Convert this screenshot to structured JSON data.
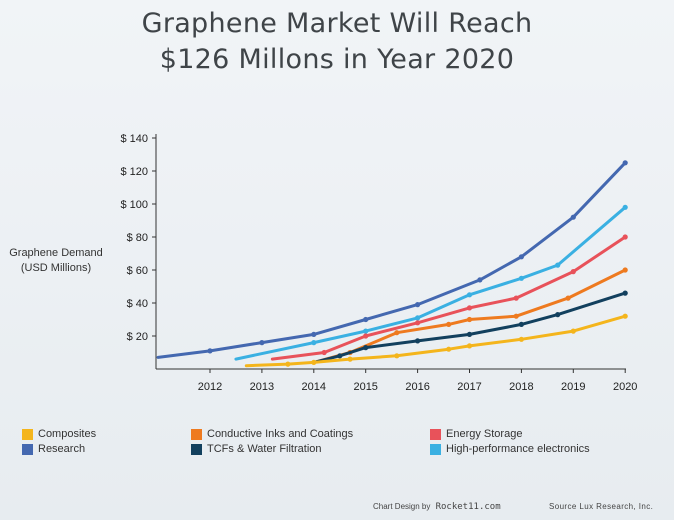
{
  "title_lines": [
    "Graphene Market Will Reach",
    "$126 Millons in Year 2020"
  ],
  "chart_data": {
    "type": "line",
    "title": "Graphene Market Will Reach $126 Millons in Year 2020",
    "ylabel_lines": [
      "Graphene Demand",
      "(USD Millions)"
    ],
    "xlabel": "",
    "x_ticks": [
      "2012",
      "2013",
      "2014",
      "2015",
      "2016",
      "2017",
      "2018",
      "2019",
      "2020"
    ],
    "y_ticks": [
      "$ 20",
      "$ 40",
      "$ 60",
      "$ 80",
      "$ 100",
      "$ 120",
      "$ 140"
    ],
    "ylim": [
      0,
      140
    ],
    "xlim": [
      2011.0,
      2020.0
    ],
    "grid": false,
    "legend_placement": "bottom",
    "series": [
      {
        "name": "Research",
        "color": "#4468b0",
        "x": [
          2011.0,
          2012.0,
          2013.0,
          2014.0,
          2015.0,
          2016.0,
          2017.2,
          2018.0,
          2019.0,
          2020.0
        ],
        "y": [
          7,
          11,
          16,
          21,
          30,
          39,
          54,
          68,
          92,
          125
        ]
      },
      {
        "name": "High-performance electronics",
        "color": "#3ab0e2",
        "x": [
          2012.5,
          2014.0,
          2015.0,
          2016.0,
          2017.0,
          2018.0,
          2018.7,
          2020.0
        ],
        "y": [
          6,
          16,
          23,
          31,
          45,
          55,
          63,
          98
        ]
      },
      {
        "name": "Energy Storage",
        "color": "#e8525a",
        "x": [
          2013.2,
          2014.2,
          2015.0,
          2016.0,
          2017.0,
          2017.9,
          2019.0,
          2020.0
        ],
        "y": [
          6,
          10,
          20,
          28,
          37,
          43,
          59,
          80
        ]
      },
      {
        "name": "Conductive Inks and Coatings",
        "color": "#ee7a1f",
        "x": [
          2014.0,
          2014.7,
          2015.6,
          2016.6,
          2017.0,
          2017.9,
          2018.9,
          2020.0
        ],
        "y": [
          4,
          10,
          22,
          27,
          30,
          32,
          43,
          60
        ]
      },
      {
        "name": "TCFs & Water Filtration",
        "color": "#12405e",
        "x": [
          2014.0,
          2014.5,
          2015.0,
          2016.0,
          2017.0,
          2018.0,
          2018.7,
          2020.0
        ],
        "y": [
          4,
          8,
          13,
          17,
          21,
          27,
          33,
          46
        ]
      },
      {
        "name": "Composites",
        "color": "#f4b51c",
        "x": [
          2012.7,
          2013.5,
          2014.0,
          2014.7,
          2015.6,
          2016.6,
          2017.0,
          2018.0,
          2019.0,
          2020.0
        ],
        "y": [
          2,
          3,
          4,
          6,
          8,
          12,
          14,
          18,
          23,
          32
        ]
      }
    ]
  },
  "legend": [
    {
      "label": "Composites",
      "color": "#f4b51c"
    },
    {
      "label": "Conductive Inks and Coatings",
      "color": "#ee7a1f"
    },
    {
      "label": "Energy Storage",
      "color": "#e8525a"
    },
    {
      "label": "Research",
      "color": "#4468b0"
    },
    {
      "label": "TCFs & Water Filtration",
      "color": "#12405e"
    },
    {
      "label": "High-performance electronics",
      "color": "#3ab0e2"
    }
  ],
  "credit_prefix": "Chart Design by",
  "credit_brand": "Rocket11.com",
  "source": "Source Lux Research, Inc."
}
